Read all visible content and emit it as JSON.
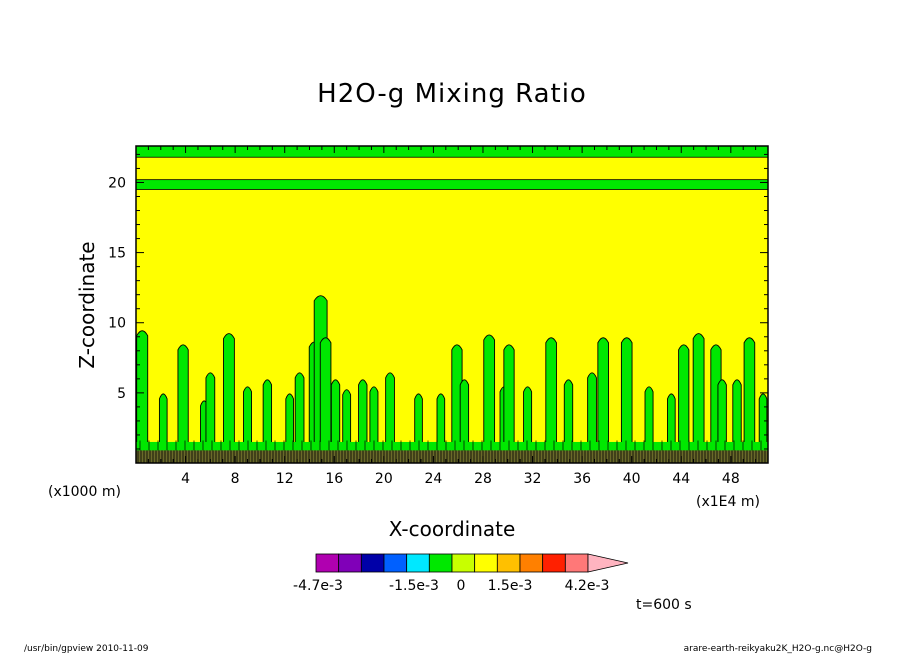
{
  "chart_data": {
    "type": "heatmap",
    "title": "H2O-g Mixing Ratio",
    "xlabel": "X-coordinate",
    "ylabel": "Z-coordinate",
    "x_unit": "(x1E4 m)",
    "y_unit": "(x1000 m)",
    "xlim": [
      0,
      51
    ],
    "ylim": [
      0,
      22.6
    ],
    "x_ticks": [
      "4",
      "8",
      "12",
      "16",
      "20",
      "24",
      "28",
      "32",
      "36",
      "40",
      "44",
      "48"
    ],
    "y_ticks": [
      "5",
      "10",
      "15",
      "20"
    ],
    "time_label": "t=600 s",
    "colorbar": {
      "colors": [
        "#b000b0",
        "#8000b8",
        "#0000a8",
        "#0060ff",
        "#00e8ff",
        "#00e800",
        "#c8ff00",
        "#ffff00",
        "#ffc000",
        "#ff8000",
        "#ff2000",
        "#ff7878",
        "#ffb4c0"
      ],
      "labels": [
        "-4.7e-3",
        "-1.5e-3",
        "0",
        "1.5e-3",
        "4.2e-3"
      ]
    },
    "fields": {
      "background_color": "#ffff00",
      "contour_color": "#00e800",
      "bands_z": [
        [
          19.5,
          20.2
        ],
        [
          21.8,
          22.6
        ]
      ],
      "plumes": [
        [
          0.5,
          9.5
        ],
        [
          2.2,
          5
        ],
        [
          3.8,
          8.5
        ],
        [
          5.5,
          4.5
        ],
        [
          6,
          6.5
        ],
        [
          7.5,
          9.3
        ],
        [
          9,
          5.5
        ],
        [
          10.6,
          6
        ],
        [
          12.4,
          5
        ],
        [
          13.2,
          6.5
        ],
        [
          14.4,
          8.7
        ],
        [
          14.9,
          12
        ],
        [
          15.3,
          9
        ],
        [
          16.1,
          6
        ],
        [
          17,
          5.3
        ],
        [
          18.3,
          6
        ],
        [
          19.2,
          5.5
        ],
        [
          20.5,
          6.5
        ],
        [
          22.8,
          5
        ],
        [
          24.6,
          5
        ],
        [
          25.9,
          8.5
        ],
        [
          26.5,
          6
        ],
        [
          28.5,
          9.2
        ],
        [
          29.7,
          5.5
        ],
        [
          30.1,
          8.5
        ],
        [
          31.6,
          5.5
        ],
        [
          33.5,
          9
        ],
        [
          34.9,
          6
        ],
        [
          36.8,
          6.5
        ],
        [
          37.7,
          9
        ],
        [
          39.6,
          9
        ],
        [
          41.4,
          5.5
        ],
        [
          43.2,
          5
        ],
        [
          44.2,
          8.5
        ],
        [
          45.4,
          9.3
        ],
        [
          46.8,
          8.5
        ],
        [
          47.3,
          6
        ],
        [
          48.5,
          6
        ],
        [
          49.5,
          9
        ],
        [
          50.6,
          5
        ]
      ]
    }
  },
  "footer": {
    "left": "/usr/bin/gpview   2010-11-09",
    "right": "arare-earth-reikyaku2K_H2O-g.nc@H2O-g"
  }
}
